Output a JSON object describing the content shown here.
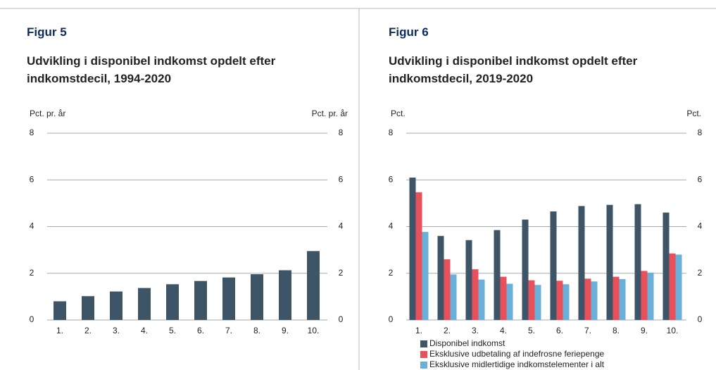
{
  "chart_data": [
    {
      "type": "bar",
      "label": "Figur 5",
      "title": "Udvikling i disponibel indkomst opdelt efter indkomstdecil, 1994-2020",
      "ylabel": "Pct. pr. år",
      "y2label": "Pct. pr. år",
      "categories": [
        "1.",
        "2.",
        "3.",
        "4.",
        "5.",
        "6.",
        "7.",
        "8.",
        "9.",
        "10."
      ],
      "values": [
        0.8,
        1.02,
        1.22,
        1.37,
        1.53,
        1.67,
        1.82,
        1.96,
        2.13,
        2.95
      ],
      "color": "#3d5566",
      "ylim": [
        0,
        8
      ],
      "yticks": [
        0,
        2,
        4,
        6,
        8
      ],
      "y2lim": [
        0,
        8
      ],
      "y2ticks": [
        0,
        2,
        4,
        6,
        8
      ],
      "grid": true
    },
    {
      "type": "grouped_bar",
      "label": "Figur 6",
      "title": "Udvikling i disponibel indkomst opdelt efter indkomstdecil, 2019-2020",
      "ylabel": "Pct.",
      "y2label": "Pct.",
      "categories": [
        "1.",
        "2.",
        "3.",
        "4.",
        "5.",
        "6.",
        "7.",
        "8.",
        "9.",
        "10."
      ],
      "series": [
        {
          "name": "Disponibel indkomst",
          "color": "#3d5566",
          "values": [
            6.1,
            3.6,
            3.42,
            3.85,
            4.3,
            4.65,
            4.88,
            4.93,
            4.96,
            4.6
          ]
        },
        {
          "name": "Eksklusive udbetaling af indefrosne feriepenge",
          "color": "#e8505b",
          "values": [
            5.47,
            2.6,
            2.17,
            1.85,
            1.7,
            1.68,
            1.77,
            1.85,
            2.1,
            2.85
          ]
        },
        {
          "name": "Eksklusive midlertidige indkomstelementer i alt",
          "color": "#6aafd8",
          "values": [
            3.77,
            1.95,
            1.73,
            1.55,
            1.5,
            1.53,
            1.65,
            1.75,
            2.03,
            2.8
          ]
        }
      ],
      "ylim": [
        0,
        8
      ],
      "yticks": [
        0,
        2,
        4,
        6,
        8
      ],
      "y2lim": [
        0,
        8
      ],
      "y2ticks": [
        0,
        2,
        4,
        6,
        8
      ],
      "grid": true,
      "legend": "bottom"
    }
  ]
}
